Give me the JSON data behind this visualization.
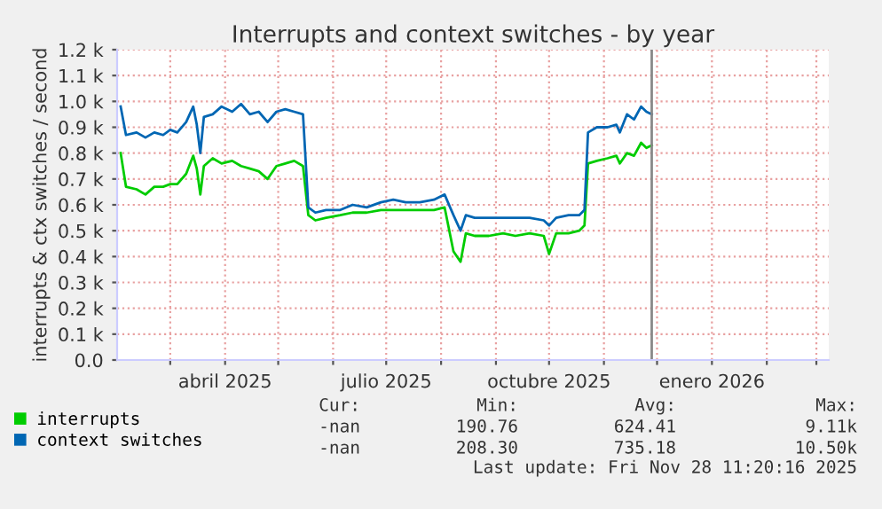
{
  "chart_data": {
    "type": "line",
    "title": "Interrupts and context switches - by year",
    "ylabel": "interrupts & ctx switches / second",
    "x": [
      "2025-02-01",
      "2025-02-04",
      "2025-02-10",
      "2025-02-15",
      "2025-02-20",
      "2025-02-25",
      "2025-03-01",
      "2025-03-05",
      "2025-03-10",
      "2025-03-14",
      "2025-03-16",
      "2025-03-18",
      "2025-03-20",
      "2025-03-25",
      "2025-03-30",
      "2025-04-05",
      "2025-04-10",
      "2025-04-15",
      "2025-04-20",
      "2025-04-25",
      "2025-04-30",
      "2025-05-05",
      "2025-05-10",
      "2025-05-15",
      "2025-05-18",
      "2025-05-22",
      "2025-05-28",
      "2025-06-05",
      "2025-06-12",
      "2025-06-20",
      "2025-06-28",
      "2025-07-05",
      "2025-07-12",
      "2025-07-20",
      "2025-07-28",
      "2025-08-03",
      "2025-08-08",
      "2025-08-12",
      "2025-08-15",
      "2025-08-20",
      "2025-08-28",
      "2025-09-05",
      "2025-09-12",
      "2025-09-20",
      "2025-09-28",
      "2025-10-01",
      "2025-10-05",
      "2025-10-12",
      "2025-10-18",
      "2025-10-21",
      "2025-10-23",
      "2025-10-28",
      "2025-11-03",
      "2025-11-08",
      "2025-11-10",
      "2025-11-14",
      "2025-11-18",
      "2025-11-22",
      "2025-11-25",
      "2025-11-28"
    ],
    "series": [
      {
        "name": "interrupts",
        "color": "#00cc00",
        "values": [
          800,
          670,
          660,
          640,
          670,
          670,
          680,
          680,
          720,
          790,
          740,
          640,
          750,
          780,
          760,
          770,
          750,
          740,
          730,
          700,
          750,
          760,
          770,
          750,
          560,
          540,
          550,
          560,
          570,
          570,
          580,
          580,
          580,
          580,
          580,
          590,
          420,
          380,
          490,
          480,
          480,
          490,
          480,
          490,
          480,
          410,
          490,
          490,
          500,
          520,
          760,
          770,
          780,
          790,
          760,
          800,
          790,
          840,
          820,
          830
        ]
      },
      {
        "name": "context switches",
        "color": "#0066b3",
        "values": [
          980,
          870,
          880,
          860,
          880,
          870,
          890,
          880,
          920,
          980,
          910,
          800,
          940,
          950,
          980,
          960,
          990,
          950,
          960,
          920,
          960,
          970,
          960,
          950,
          590,
          570,
          580,
          580,
          600,
          590,
          610,
          620,
          610,
          610,
          620,
          640,
          560,
          500,
          560,
          550,
          550,
          550,
          550,
          550,
          540,
          520,
          550,
          560,
          560,
          580,
          880,
          900,
          900,
          910,
          880,
          950,
          930,
          980,
          960,
          950
        ]
      }
    ],
    "xlim": [
      "2025-01-30",
      "2026-03-08"
    ],
    "xticks": [
      {
        "value": "2025-03-01",
        "label": null
      },
      {
        "value": "2025-04-01",
        "label": "abril 2025"
      },
      {
        "value": "2025-05-01",
        "label": null
      },
      {
        "value": "2025-06-01",
        "label": null
      },
      {
        "value": "2025-07-01",
        "label": "julio 2025"
      },
      {
        "value": "2025-08-01",
        "label": null
      },
      {
        "value": "2025-09-01",
        "label": null
      },
      {
        "value": "2025-10-01",
        "label": "octubre 2025"
      },
      {
        "value": "2025-11-01",
        "label": null
      },
      {
        "value": "2025-12-01",
        "label": null
      },
      {
        "value": "2026-01-01",
        "label": "enero 2026"
      },
      {
        "value": "2026-02-01",
        "label": null
      },
      {
        "value": "2026-03-01",
        "label": null
      }
    ],
    "ylim": [
      0,
      1200
    ],
    "yticks": [
      {
        "value": 0,
        "label": "0.0"
      },
      {
        "value": 100,
        "label": "0.1 k"
      },
      {
        "value": 200,
        "label": "0.2 k"
      },
      {
        "value": 300,
        "label": "0.3 k"
      },
      {
        "value": 400,
        "label": "0.4 k"
      },
      {
        "value": 500,
        "label": "0.5 k"
      },
      {
        "value": 600,
        "label": "0.6 k"
      },
      {
        "value": 700,
        "label": "0.7 k"
      },
      {
        "value": 800,
        "label": "0.8 k"
      },
      {
        "value": 900,
        "label": "0.9 k"
      },
      {
        "value": 1000,
        "label": "1.0 k"
      },
      {
        "value": 1100,
        "label": "1.1 k"
      },
      {
        "value": 1200,
        "label": "1.2 k"
      }
    ],
    "ref_lines": [
      {
        "axis": "x",
        "value": "2025-11-28",
        "label": null,
        "color": "#888888"
      }
    ],
    "grid": true,
    "legend": "bottom left",
    "line_style": "solid",
    "marker": "none",
    "annotations": [
      "Cur:",
      "Min:",
      "Avg:",
      "Max:",
      "-nan",
      "190.76",
      "624.41",
      "9.11k",
      "-nan",
      "208.30",
      "735.18",
      "10.50k",
      "Last update: Fri Nov 28 11:20:16 2025"
    ]
  }
}
